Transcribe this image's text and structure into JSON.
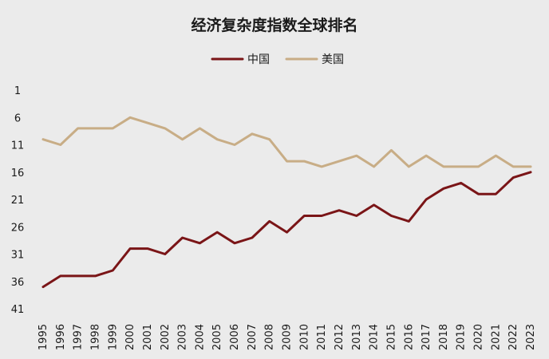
{
  "chart_data": {
    "type": "line",
    "title": "经济复杂度指数全球排名",
    "xlabel": "",
    "ylabel": "",
    "x": [
      "1995",
      "1996",
      "1997",
      "1998",
      "1999",
      "2000",
      "2001",
      "2002",
      "2003",
      "2004",
      "2005",
      "2006",
      "2007",
      "2008",
      "2009",
      "2010",
      "2011",
      "2012",
      "2013",
      "2014",
      "2015",
      "2016",
      "2017",
      "2018",
      "2019",
      "2020",
      "2021",
      "2022",
      "2023"
    ],
    "y_ticks": [
      1,
      6,
      11,
      16,
      21,
      26,
      31,
      36,
      41
    ],
    "ylim": [
      1,
      41
    ],
    "y_reversed": true,
    "grid": false,
    "legend_position": "top-center",
    "series": [
      {
        "name": "中国",
        "color": "#7a1517",
        "values": [
          37,
          35,
          35,
          35,
          34,
          30,
          30,
          31,
          28,
          29,
          27,
          29,
          28,
          25,
          27,
          24,
          24,
          23,
          24,
          22,
          24,
          25,
          21,
          19,
          18,
          20,
          20,
          17,
          16
        ]
      },
      {
        "name": "美国",
        "color": "#c8ad86",
        "values": [
          10,
          11,
          8,
          8,
          8,
          6,
          7,
          8,
          10,
          8,
          10,
          11,
          9,
          10,
          14,
          14,
          15,
          14,
          13,
          15,
          12,
          15,
          13,
          15,
          15,
          15,
          13,
          15,
          15
        ]
      }
    ]
  }
}
